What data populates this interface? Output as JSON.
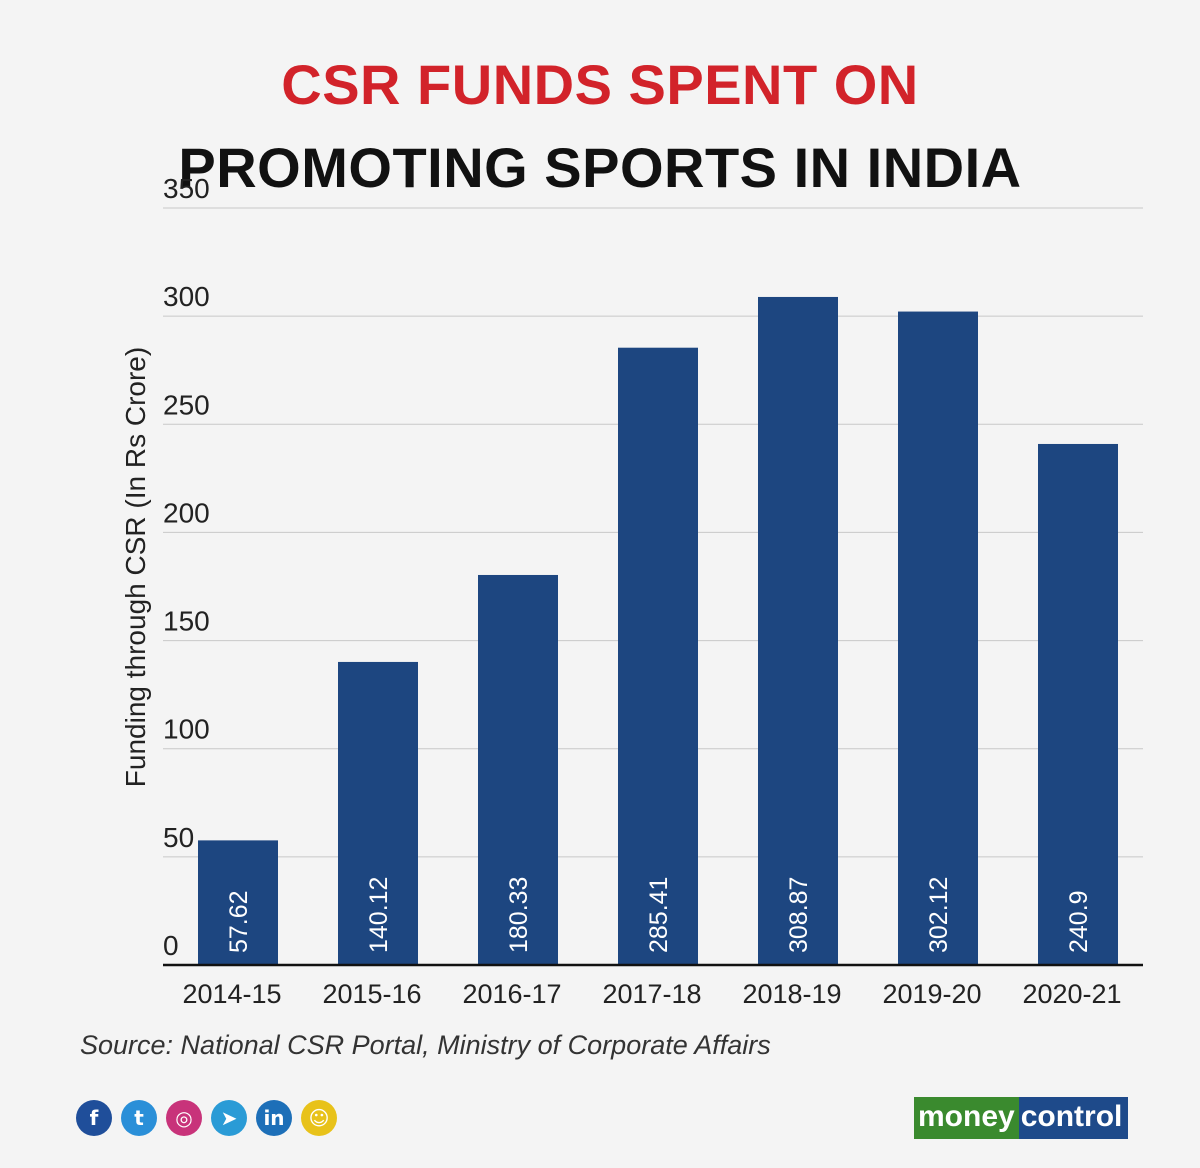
{
  "title": {
    "line1": "CSR FUNDS SPENT ON",
    "line2": "PROMOTING SPORTS IN INDIA"
  },
  "source": "Source: National CSR Portal, Ministry of Corporate Affairs",
  "logo": {
    "part1": "money",
    "part2": "control"
  },
  "social_icons": [
    {
      "name": "facebook-icon",
      "glyph": "f",
      "color": "#1f4e9a"
    },
    {
      "name": "twitter-icon",
      "glyph": "t",
      "color": "#2a8fd8"
    },
    {
      "name": "instagram-icon",
      "glyph": "◎",
      "color": "#c8337a"
    },
    {
      "name": "telegram-icon",
      "glyph": "➤",
      "color": "#2a9bd6"
    },
    {
      "name": "linkedin-icon",
      "glyph": "in",
      "color": "#1d6fb8"
    },
    {
      "name": "snapchat-icon",
      "glyph": "☺",
      "color": "#e8c21a"
    }
  ],
  "chart_data": {
    "type": "bar",
    "title": "CSR FUNDS SPENT ON PROMOTING SPORTS IN INDIA",
    "ylabel": "Funding through CSR (In Rs Crore)",
    "xlabel": "",
    "categories": [
      "2014-15",
      "2015-16",
      "2016-17",
      "2017-18",
      "2018-19",
      "2019-20",
      "2020-21"
    ],
    "values": [
      57.62,
      140.12,
      180.33,
      285.41,
      308.87,
      302.12,
      240.9
    ],
    "value_labels": [
      "57.62",
      "140.12",
      "180.33",
      "285.41",
      "308.87",
      "302.12",
      "240.9"
    ],
    "ylim": [
      0,
      350
    ],
    "yticks": [
      "0",
      "50",
      "100",
      "150",
      "200",
      "250",
      "300",
      "350"
    ],
    "grid": true,
    "bar_color": "#1d4680",
    "accent_color": "#d2232a"
  }
}
